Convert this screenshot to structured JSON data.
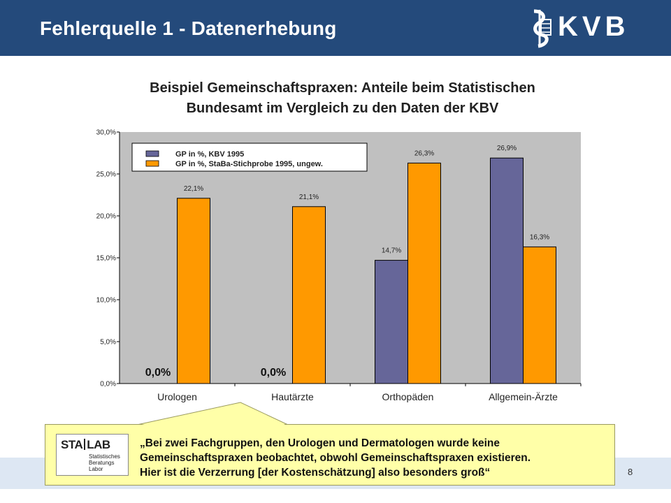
{
  "header": {
    "title": "Fehlerquelle 1 - Datenerhebung",
    "logo_text": "KVB",
    "logo_icon": "kvb-emblem-icon"
  },
  "chart_data": {
    "type": "bar",
    "title_lines": [
      "Beispiel Gemeinschaftspraxen: Anteile beim Statistischen",
      "Bundesamt im Vergleich zu den Daten der KBV"
    ],
    "categories": [
      "Urologen",
      "Hautärzte",
      "Orthopäden",
      "Allgemein-Ärzte"
    ],
    "series": [
      {
        "name": "GP in %, KBV 1995",
        "values": [
          0.0,
          0.0,
          14.7,
          26.9
        ],
        "color": "#666699"
      },
      {
        "name": "GP in %, StaBa-Stichprobe 1995, ungew.",
        "values": [
          22.1,
          21.1,
          26.3,
          16.3
        ],
        "color": "#ff9900"
      }
    ],
    "value_labels": [
      [
        "0,0%",
        "0,0%",
        "14,7%",
        "26,9%"
      ],
      [
        "22,1%",
        "21,1%",
        "26,3%",
        "16,3%"
      ]
    ],
    "yticks": [
      0,
      5,
      10,
      15,
      20,
      25,
      30
    ],
    "ytick_labels": [
      "0,0%",
      "5,0%",
      "10,0%",
      "15,0%",
      "20,0%",
      "25,0%",
      "30,0%"
    ],
    "ylim": [
      0,
      30
    ],
    "plot_background": "#c0c0c0",
    "legend_position": "top-left"
  },
  "callout": {
    "lines": [
      "„Bei zwei Fachgruppen, den Urologen und Dermatologen wurde keine",
      "Gemeinschaftspraxen beobachtet, obwohl Gemeinschaftspraxen existieren.",
      "Hier ist die Verzerrung [der Kostenschätzung] also besonders groß“"
    ],
    "logo_brand_left": "STA",
    "logo_brand_right": "LAB",
    "logo_sub": [
      "Statistisches",
      "Beratungs",
      "Labor"
    ]
  },
  "footer": {
    "page_number": "8"
  }
}
